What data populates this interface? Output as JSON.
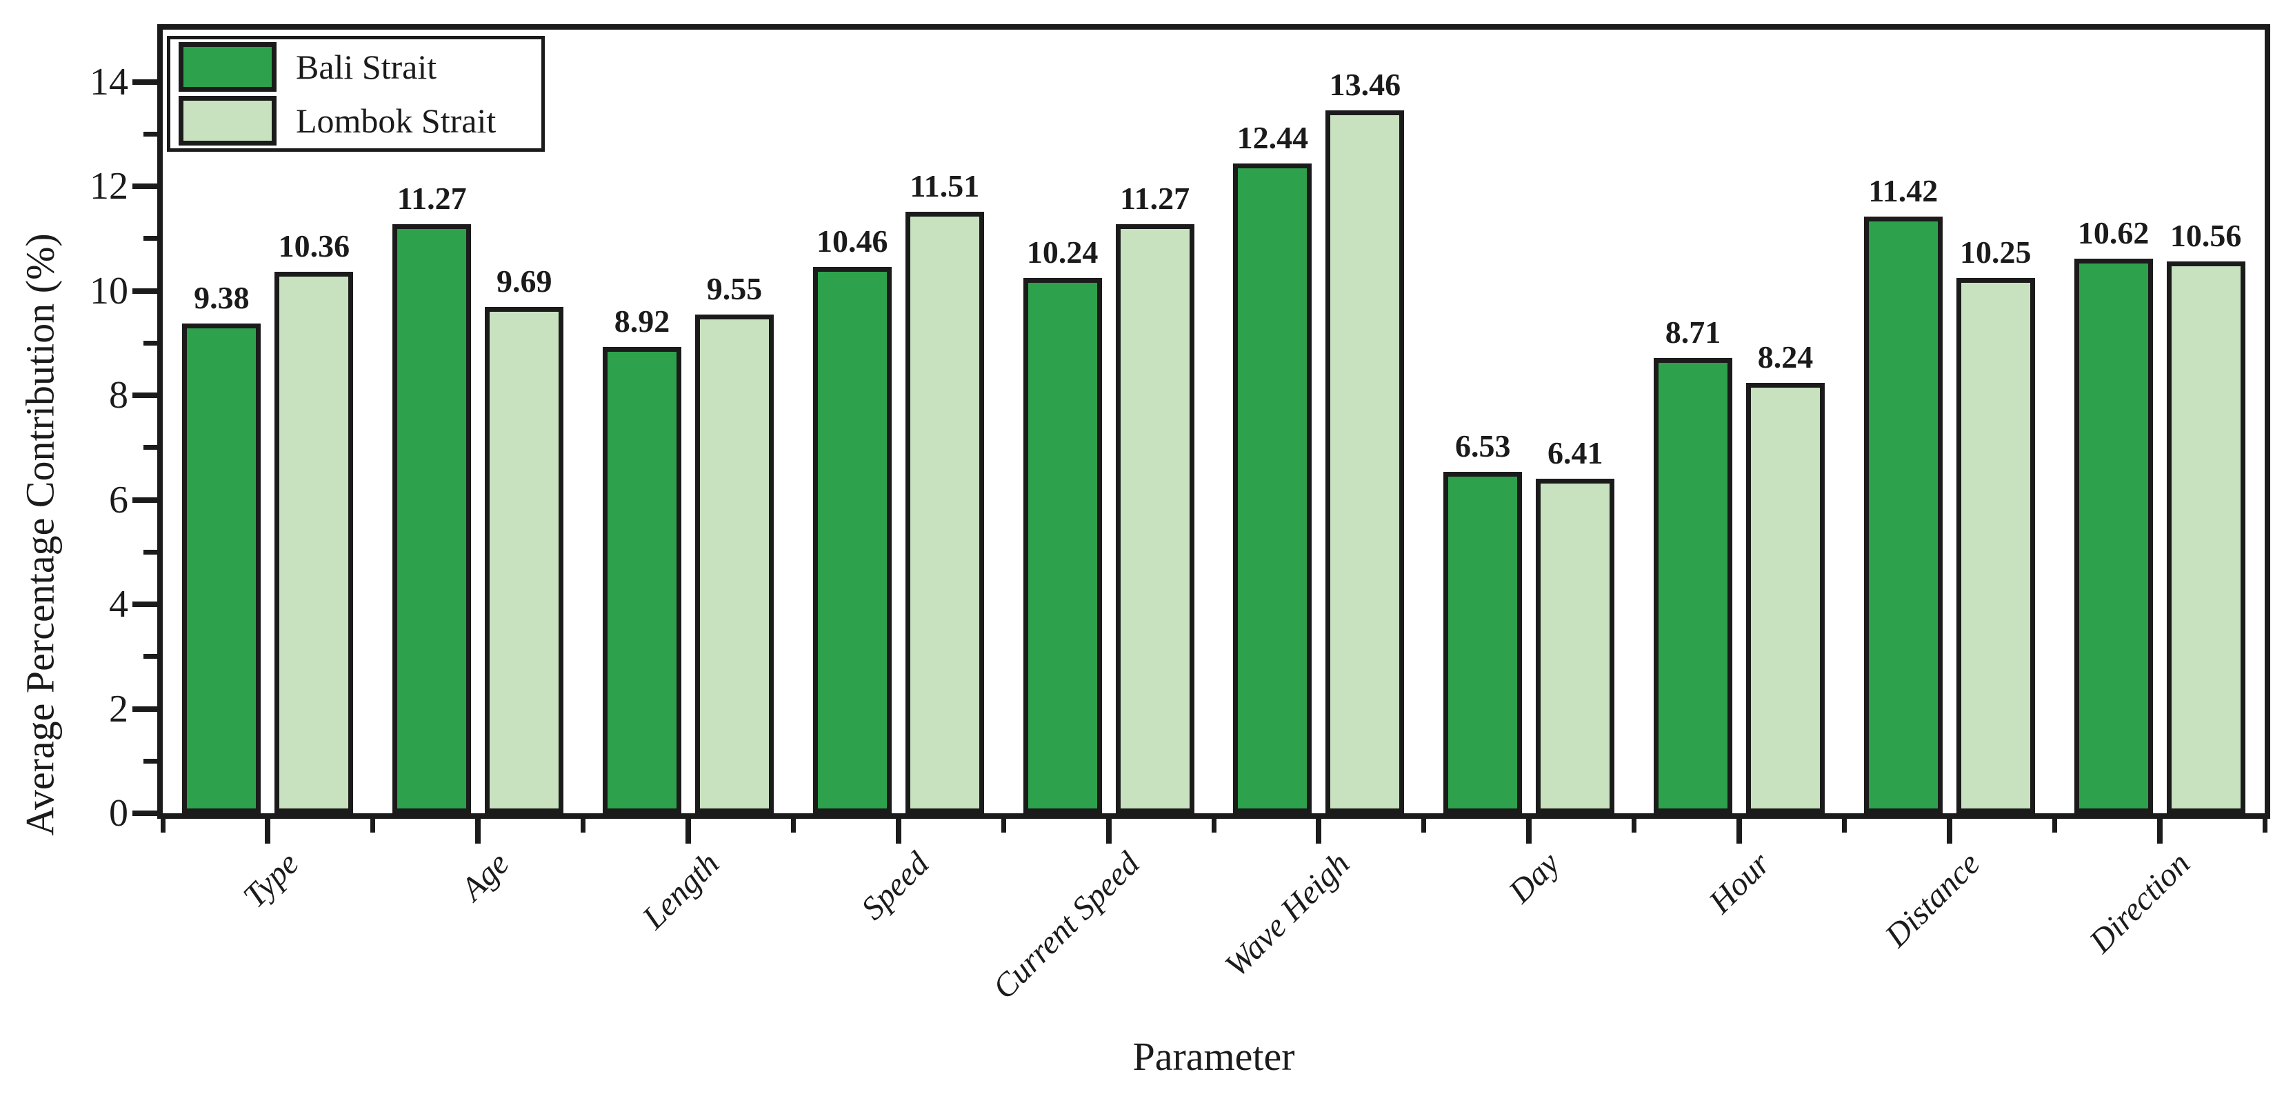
{
  "chart_data": {
    "type": "bar",
    "title": "",
    "xlabel": "Parameter",
    "ylabel": "Average Percentage Contribution (%)",
    "categories": [
      "Type",
      "Age",
      "Length",
      "Speed",
      "Current Speed",
      "Wave Heigh",
      "Day",
      "Hour",
      "Distance",
      "Direction"
    ],
    "series": [
      {
        "name": "Bali Strait",
        "color": "#2DA14B",
        "values": [
          9.38,
          11.27,
          8.92,
          10.46,
          10.24,
          12.44,
          6.53,
          8.71,
          11.42,
          10.62
        ]
      },
      {
        "name": "Lombok Strait",
        "color": "#C8E2C0",
        "values": [
          10.36,
          9.69,
          9.55,
          11.51,
          11.27,
          13.46,
          6.41,
          8.24,
          10.25,
          10.56
        ]
      }
    ],
    "ylim": [
      0,
      15
    ],
    "yticks": [
      0,
      2,
      4,
      6,
      8,
      10,
      12,
      14
    ],
    "ytick_labels": [
      "0",
      "2",
      "4",
      "6",
      "8",
      "10",
      "12",
      "14"
    ],
    "yminorticks": [
      1,
      3,
      5,
      7,
      9,
      11,
      13
    ],
    "bar_edge_color": "#1b1b1b",
    "value_label_decimals": 2,
    "grid": false,
    "legend_position": "upper-left"
  }
}
